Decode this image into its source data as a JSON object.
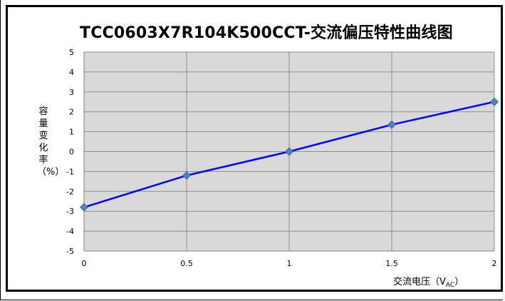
{
  "chart_data": {
    "type": "line",
    "title": "TCC0603X7R104K500CCT-交流偏压特性曲线图",
    "ylabel": "容量变化率（%）",
    "xlabel": "交流电压（V",
    "xlabel_sub": "AC",
    "xlabel_close": "）",
    "x": [
      0,
      0.5,
      1,
      1.5,
      2
    ],
    "x_ticks": [
      "0",
      "0.5",
      "1",
      "1.5",
      "2"
    ],
    "y_ticks": [
      "5",
      "4",
      "3",
      "2",
      "1",
      "0",
      "-1",
      "-2",
      "-3",
      "-4",
      "-5"
    ],
    "xlim": [
      0,
      2
    ],
    "ylim": [
      -5,
      5
    ],
    "grid": true,
    "series": [
      {
        "values": [
          -2.8,
          -1.2,
          0,
          1.35,
          2.5
        ],
        "color": "#0000ff",
        "marker_color": "#4f81bd"
      }
    ],
    "plot_background": "#d9d9d9",
    "grid_color": "#8c8c8c"
  }
}
